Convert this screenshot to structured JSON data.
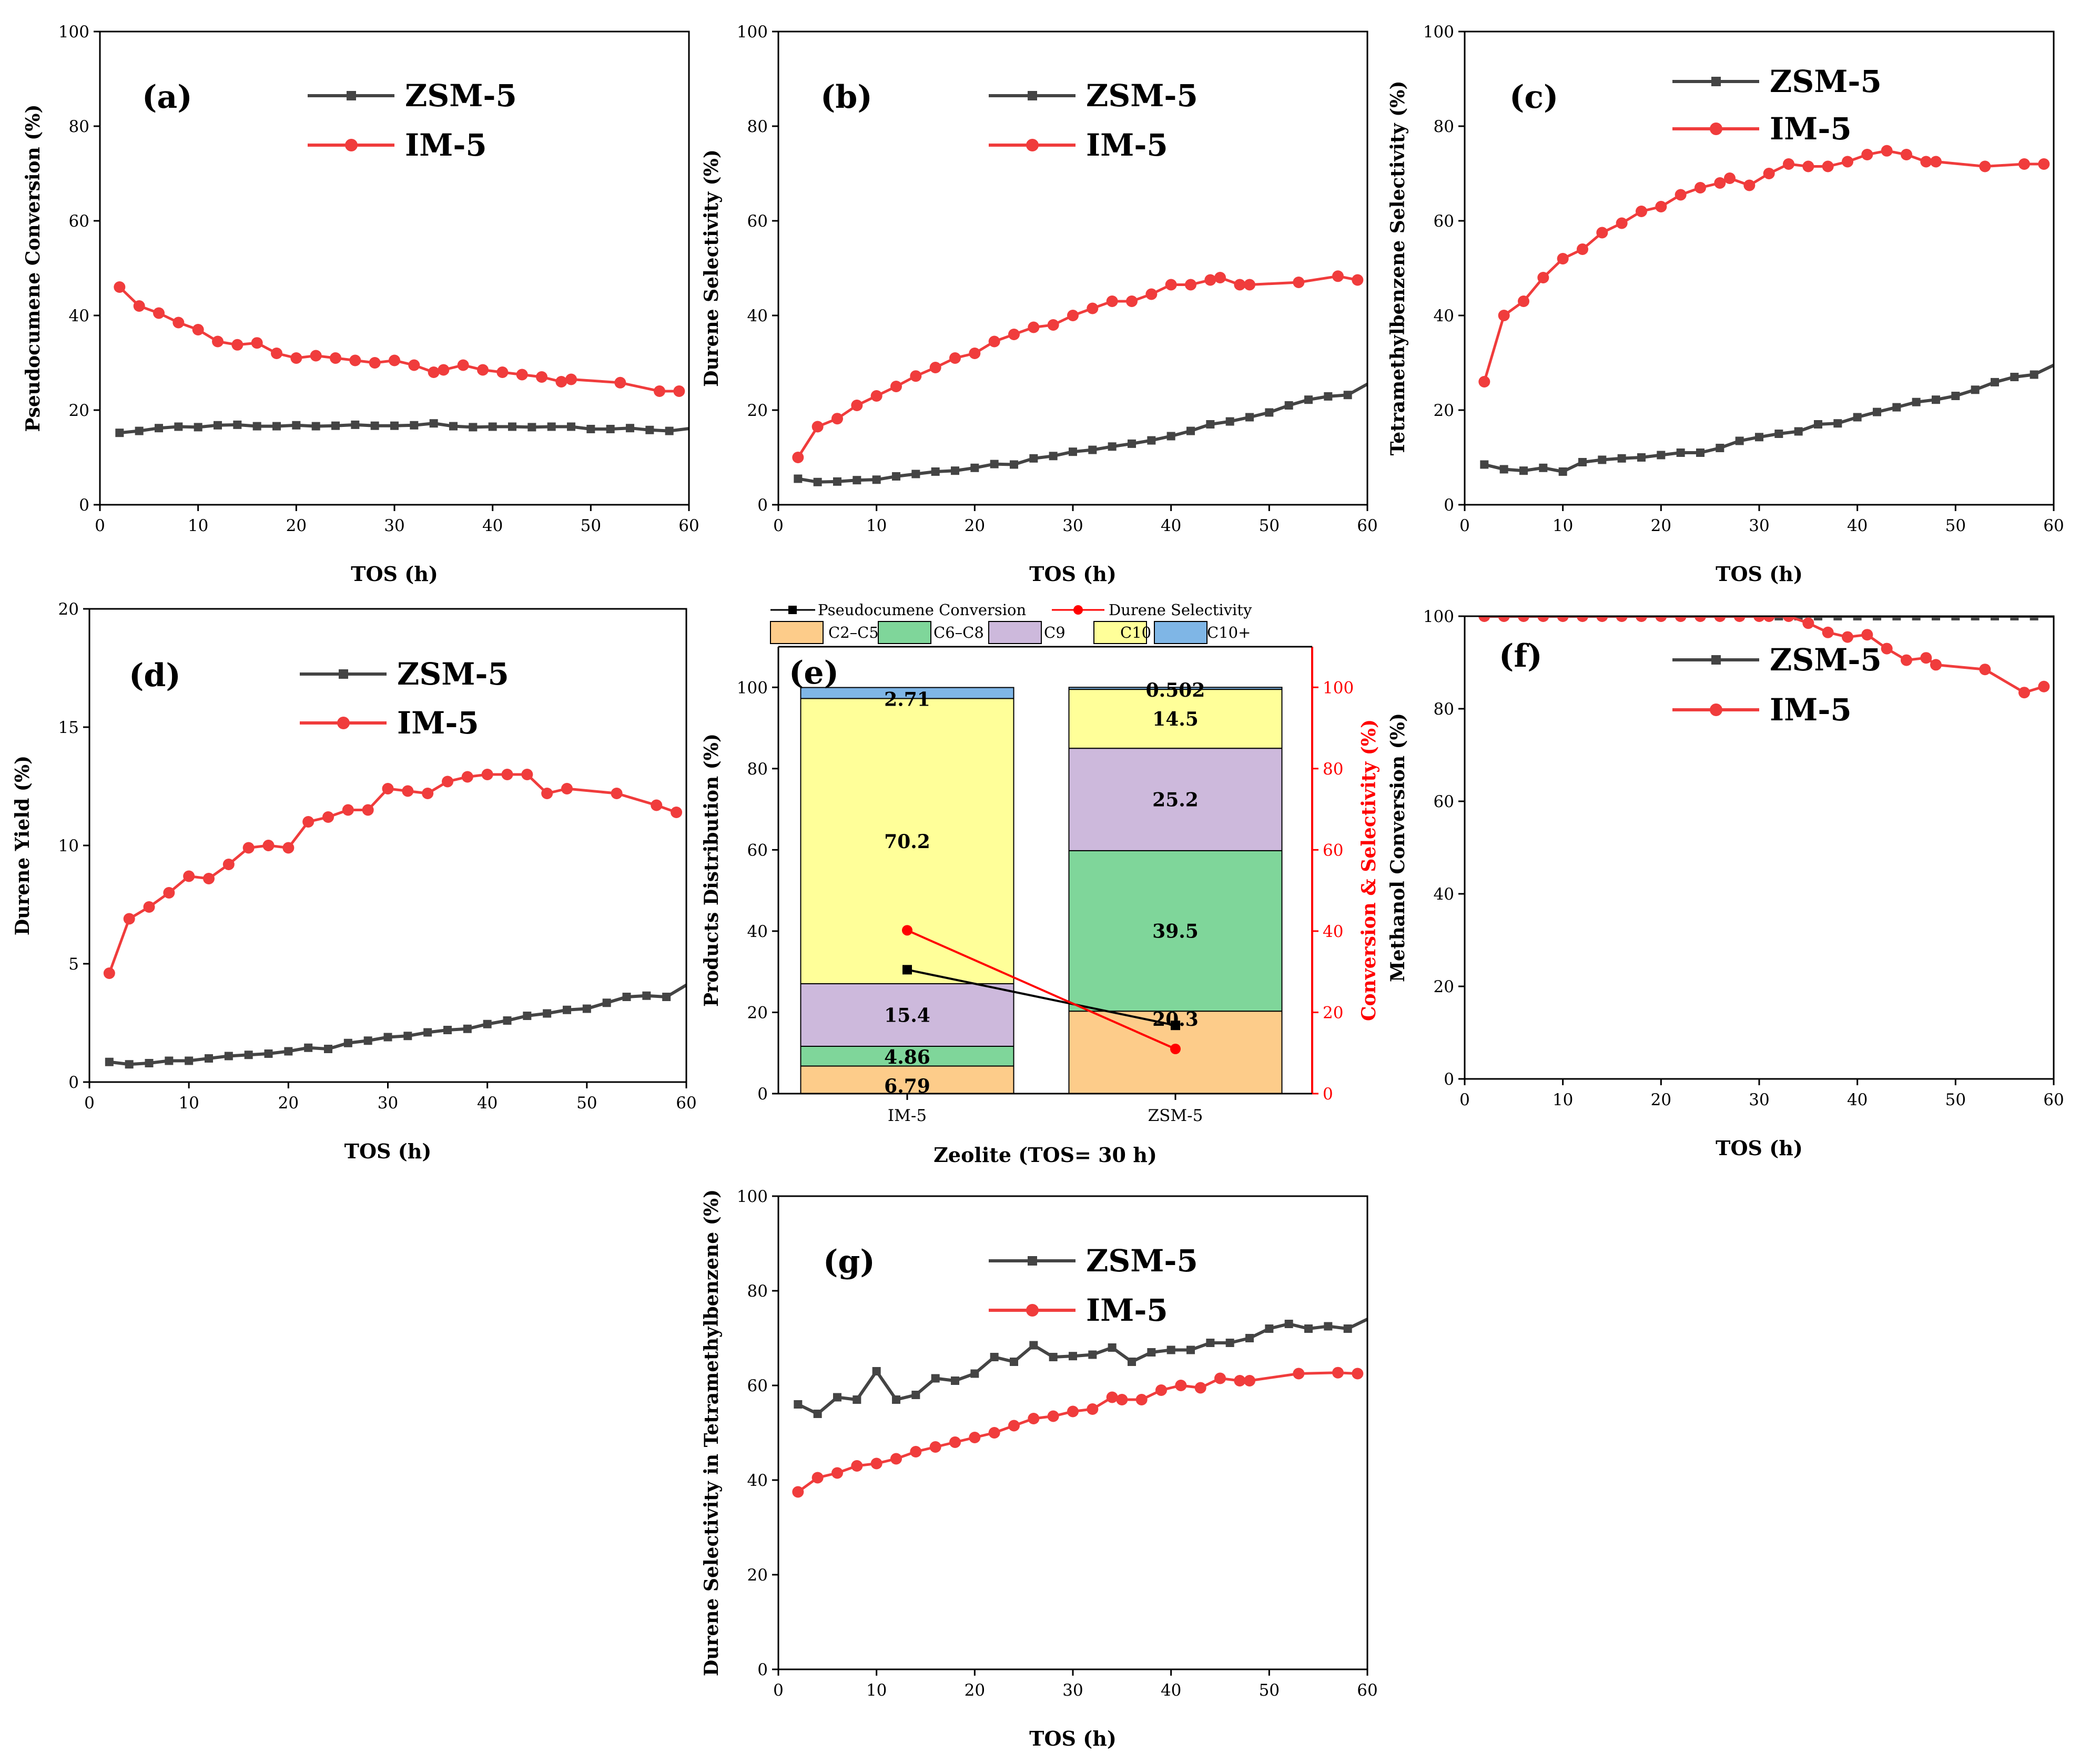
{
  "colors": {
    "zsm5": "#444444",
    "im5": "#f03c3c",
    "c2c5": "#fdcc8a",
    "c6c8": "#7fd69a",
    "c9": "#cdb9dc",
    "c10": "#ffff99",
    "c10plus": "#7fb6e6",
    "conv_line": "#000000",
    "sel_line": "#ff0000"
  },
  "chart_data": [
    {
      "id": "a",
      "type": "line",
      "panel_label": "(a)",
      "xlabel": "TOS (h)",
      "ylabel": "Pseudocumene Conversion (%)",
      "xlim": [
        0,
        60
      ],
      "ylim": [
        0,
        100
      ],
      "xticks": [
        0,
        10,
        20,
        30,
        40,
        50,
        60
      ],
      "yticks": [
        0,
        20,
        40,
        60,
        80,
        100
      ],
      "series": [
        {
          "name": "ZSM-5",
          "x": [
            2,
            4,
            6,
            8,
            10,
            12,
            14,
            16,
            18,
            20,
            22,
            24,
            26,
            28,
            30,
            32,
            34,
            36,
            38,
            40,
            42,
            44,
            46,
            48,
            50,
            52,
            54,
            56,
            58,
            60
          ],
          "y": [
            15.2,
            15.6,
            16.2,
            16.5,
            16.4,
            16.8,
            16.9,
            16.6,
            16.6,
            16.8,
            16.6,
            16.7,
            16.9,
            16.7,
            16.7,
            16.8,
            17.2,
            16.6,
            16.4,
            16.5,
            16.5,
            16.4,
            16.5,
            16.5,
            16,
            16,
            16.2,
            15.8,
            15.6,
            16.1
          ]
        },
        {
          "name": "IM-5",
          "x": [
            2,
            4,
            6,
            8,
            10,
            12,
            14,
            16,
            18,
            20,
            22,
            24,
            26,
            28,
            30,
            32,
            34,
            35,
            37,
            39,
            41,
            43,
            45,
            47,
            48,
            53,
            57,
            59
          ],
          "y": [
            46,
            42,
            40.5,
            38.5,
            37,
            34.5,
            33.8,
            34.2,
            32,
            31,
            31.5,
            31,
            30.5,
            30,
            30.5,
            29.5,
            28,
            28.5,
            29.5,
            28.5,
            28,
            27.5,
            27,
            26,
            26.5,
            25.8,
            24,
            24
          ]
        }
      ]
    },
    {
      "id": "b",
      "type": "line",
      "panel_label": "(b)",
      "xlabel": "TOS (h)",
      "ylabel": "Durene Selectivity (%)",
      "xlim": [
        0,
        60
      ],
      "ylim": [
        0,
        100
      ],
      "xticks": [
        0,
        10,
        20,
        30,
        40,
        50,
        60
      ],
      "yticks": [
        0,
        20,
        40,
        60,
        80,
        100
      ],
      "series": [
        {
          "name": "ZSM-5",
          "x": [
            2,
            4,
            6,
            8,
            10,
            12,
            14,
            16,
            18,
            20,
            22,
            24,
            26,
            28,
            30,
            32,
            34,
            36,
            38,
            40,
            42,
            44,
            46,
            48,
            50,
            52,
            54,
            56,
            58,
            60
          ],
          "y": [
            5.5,
            4.8,
            4.9,
            5.2,
            5.3,
            6,
            6.5,
            7,
            7.2,
            7.8,
            8.6,
            8.5,
            9.8,
            10.3,
            11.2,
            11.6,
            12.3,
            12.9,
            13.6,
            14.5,
            15.6,
            17,
            17.6,
            18.5,
            19.5,
            21,
            22.2,
            22.9,
            23.2,
            25.5
          ]
        },
        {
          "name": "IM-5",
          "x": [
            2,
            4,
            6,
            8,
            10,
            12,
            14,
            16,
            18,
            20,
            22,
            24,
            26,
            28,
            30,
            32,
            34,
            36,
            38,
            40,
            42,
            44,
            45,
            47,
            48,
            53,
            57,
            59
          ],
          "y": [
            10,
            16.5,
            18.2,
            21,
            23,
            25,
            27.2,
            29,
            31,
            32,
            34.5,
            36,
            37.5,
            38,
            40,
            41.5,
            43,
            43,
            44.5,
            46.5,
            46.5,
            47.5,
            48,
            46.5,
            46.5,
            47,
            48.3,
            47.5
          ]
        }
      ]
    },
    {
      "id": "c",
      "type": "line",
      "panel_label": "(c)",
      "xlabel": "TOS (h)",
      "ylabel": "Tetramethylbenzene Selectivity (%)",
      "xlim": [
        0,
        60
      ],
      "ylim": [
        0,
        100
      ],
      "xticks": [
        0,
        10,
        20,
        30,
        40,
        50,
        60
      ],
      "yticks": [
        0,
        20,
        40,
        60,
        80,
        100
      ],
      "series": [
        {
          "name": "ZSM-5",
          "x": [
            2,
            4,
            6,
            8,
            10,
            12,
            14,
            16,
            18,
            20,
            22,
            24,
            26,
            28,
            30,
            32,
            34,
            36,
            38,
            40,
            42,
            44,
            46,
            48,
            50,
            52,
            54,
            56,
            58,
            60
          ],
          "y": [
            8.5,
            7.5,
            7.2,
            7.8,
            7,
            9,
            9.5,
            9.8,
            10,
            10.5,
            11,
            11,
            12,
            13.5,
            14.3,
            15,
            15.5,
            17,
            17.2,
            18.5,
            19.6,
            20.6,
            21.7,
            22.2,
            23,
            24.3,
            25.9,
            27,
            27.5,
            29.5
          ]
        },
        {
          "name": "IM-5",
          "x": [
            2,
            4,
            6,
            8,
            10,
            12,
            14,
            16,
            18,
            20,
            22,
            24,
            26,
            27,
            29,
            31,
            33,
            35,
            37,
            39,
            41,
            43,
            45,
            47,
            48,
            53,
            57,
            59
          ],
          "y": [
            26,
            40,
            43,
            48,
            52,
            54,
            57.5,
            59.5,
            62,
            63,
            65.5,
            67,
            68,
            69,
            67.5,
            70,
            72,
            71.5,
            71.5,
            72.5,
            74,
            74.8,
            74,
            72.5,
            72.5,
            71.5,
            72,
            72
          ]
        }
      ]
    },
    {
      "id": "d",
      "type": "line",
      "panel_label": "(d)",
      "xlabel": "TOS (h)",
      "ylabel": "Durene Yield (%)",
      "xlim": [
        0,
        60
      ],
      "ylim": [
        0,
        20
      ],
      "xticks": [
        0,
        10,
        20,
        30,
        40,
        50,
        60
      ],
      "yticks": [
        0,
        5,
        10,
        15,
        20
      ],
      "series": [
        {
          "name": "ZSM-5",
          "x": [
            2,
            4,
            6,
            8,
            10,
            12,
            14,
            16,
            18,
            20,
            22,
            24,
            26,
            28,
            30,
            32,
            34,
            36,
            38,
            40,
            42,
            44,
            46,
            48,
            50,
            52,
            54,
            56,
            58,
            60
          ],
          "y": [
            0.85,
            0.75,
            0.8,
            0.9,
            0.9,
            1,
            1.1,
            1.15,
            1.2,
            1.3,
            1.45,
            1.4,
            1.65,
            1.75,
            1.9,
            1.95,
            2.1,
            2.2,
            2.25,
            2.45,
            2.6,
            2.8,
            2.9,
            3.05,
            3.1,
            3.35,
            3.6,
            3.65,
            3.6,
            4.1
          ]
        },
        {
          "name": "IM-5",
          "x": [
            2,
            4,
            6,
            8,
            10,
            12,
            14,
            16,
            18,
            20,
            22,
            24,
            26,
            28,
            30,
            32,
            34,
            36,
            38,
            40,
            42,
            44,
            46,
            48,
            53,
            57,
            59
          ],
          "y": [
            4.6,
            6.9,
            7.4,
            8,
            8.7,
            8.6,
            9.2,
            9.9,
            10,
            9.9,
            11,
            11.2,
            11.5,
            11.5,
            12.4,
            12.3,
            12.2,
            12.7,
            12.9,
            13,
            13,
            13,
            12.2,
            12.4,
            12.2,
            11.7,
            11.4
          ]
        }
      ]
    },
    {
      "id": "e",
      "type": "bar",
      "panel_label": "(e)",
      "xlabel": "Zeolite (TOS= 30 h)",
      "ylabel": "Products Distribution (%)",
      "ylabel_right": "Conversion & Selectivity (%)",
      "ylim": [
        0,
        110
      ],
      "yticks": [
        0,
        20,
        40,
        60,
        80,
        100
      ],
      "categories": [
        "IM-5",
        "ZSM-5"
      ],
      "legend_lines": [
        "Pseudocumene Conversion",
        "Durene Selectivity"
      ],
      "stack_names": [
        "C2–C5",
        "C6–C8",
        "C9",
        "C10",
        "C10+"
      ],
      "stacks": [
        {
          "name": "C2–C5",
          "values": [
            6.79,
            20.3
          ],
          "labels": [
            "6.79",
            "20.3"
          ]
        },
        {
          "name": "C6–C8",
          "values": [
            4.86,
            39.5
          ],
          "labels": [
            "4.86",
            "39.5"
          ]
        },
        {
          "name": "C9",
          "values": [
            15.4,
            25.2
          ],
          "labels": [
            "15.4",
            "25.2"
          ]
        },
        {
          "name": "C10",
          "values": [
            70.2,
            14.5
          ],
          "labels": [
            "70.2",
            "14.5"
          ]
        },
        {
          "name": "C10+",
          "values": [
            2.71,
            0.502
          ],
          "labels": [
            "2.71",
            "0.502"
          ]
        }
      ],
      "line_series": [
        {
          "name": "Pseudocumene Conversion",
          "values": [
            30.5,
            16.8
          ]
        },
        {
          "name": "Durene Selectivity",
          "values": [
            40.2,
            11
          ]
        }
      ]
    },
    {
      "id": "f",
      "type": "line",
      "panel_label": "(f)",
      "xlabel": "TOS (h)",
      "ylabel": "Methanol Conversion (%)",
      "xlim": [
        0,
        60
      ],
      "ylim": [
        0,
        100
      ],
      "xticks": [
        0,
        10,
        20,
        30,
        40,
        50,
        60
      ],
      "yticks": [
        0,
        20,
        40,
        60,
        80,
        100
      ],
      "series": [
        {
          "name": "ZSM-5",
          "x": [
            2,
            4,
            6,
            8,
            10,
            12,
            14,
            16,
            18,
            20,
            22,
            24,
            26,
            28,
            30,
            32,
            34,
            36,
            38,
            40,
            42,
            44,
            46,
            48,
            50,
            52,
            54,
            56,
            58,
            60
          ],
          "y": [
            100,
            100,
            100,
            100,
            100,
            100,
            100,
            100,
            100,
            100,
            100,
            100,
            100,
            100,
            100,
            100,
            100,
            100,
            100,
            100,
            100,
            100,
            100,
            100,
            100,
            100,
            100,
            100,
            100,
            100
          ]
        },
        {
          "name": "IM-5",
          "x": [
            2,
            4,
            6,
            8,
            10,
            12,
            14,
            16,
            18,
            20,
            22,
            24,
            26,
            28,
            30,
            31,
            33,
            35,
            37,
            39,
            41,
            43,
            45,
            47,
            48,
            53,
            57,
            59
          ],
          "y": [
            100,
            100,
            100,
            100,
            100,
            100,
            100,
            100,
            100,
            100,
            100,
            100,
            100,
            100,
            100,
            100,
            100,
            98.5,
            96.5,
            95.5,
            96,
            93,
            90.5,
            91,
            89.5,
            88.5,
            83.5,
            84.8
          ]
        }
      ]
    },
    {
      "id": "g",
      "type": "line",
      "panel_label": "(g)",
      "xlabel": "TOS (h)",
      "ylabel": "Durene Selectivity in Tetramethylbenzene (%)",
      "xlim": [
        0,
        60
      ],
      "ylim": [
        0,
        100
      ],
      "xticks": [
        0,
        10,
        20,
        30,
        40,
        50,
        60
      ],
      "yticks": [
        0,
        20,
        40,
        60,
        80,
        100
      ],
      "series": [
        {
          "name": "ZSM-5",
          "x": [
            2,
            4,
            6,
            8,
            10,
            12,
            14,
            16,
            18,
            20,
            22,
            24,
            26,
            28,
            30,
            32,
            34,
            36,
            38,
            40,
            42,
            44,
            46,
            48,
            50,
            52,
            54,
            56,
            58,
            60
          ],
          "y": [
            56,
            54,
            57.5,
            57,
            63,
            57,
            58,
            61.5,
            61,
            62.5,
            66,
            65,
            68.5,
            66,
            66.2,
            66.5,
            68,
            65,
            67,
            67.5,
            67.5,
            69,
            69,
            70,
            72,
            73,
            72,
            72.5,
            72,
            74
          ]
        },
        {
          "name": "IM-5",
          "x": [
            2,
            4,
            6,
            8,
            10,
            12,
            14,
            16,
            18,
            20,
            22,
            24,
            26,
            28,
            30,
            32,
            34,
            35,
            37,
            39,
            41,
            43,
            45,
            47,
            48,
            53,
            57,
            59
          ],
          "y": [
            37.5,
            40.5,
            41.5,
            43,
            43.5,
            44.5,
            46,
            47,
            48,
            49,
            50,
            51.5,
            53,
            53.5,
            54.5,
            55,
            57.5,
            57,
            57,
            59,
            60,
            59.5,
            61.5,
            61,
            61,
            62.5,
            62.7,
            62.5
          ]
        }
      ]
    }
  ]
}
